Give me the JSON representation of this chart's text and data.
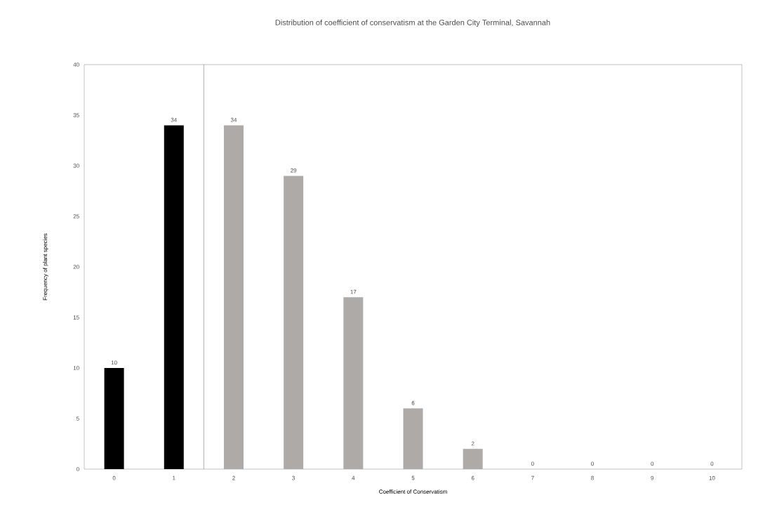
{
  "chart_data": {
    "type": "bar",
    "title": "Distribution of coefficient of conservatism at the Garden City Terminal, Savannah",
    "xlabel": "Coefficient of Conservatism",
    "ylabel": "Frequency of plant species",
    "categories": [
      "0",
      "1",
      "2",
      "3",
      "4",
      "5",
      "6",
      "7",
      "8",
      "9",
      "10"
    ],
    "values": [
      10,
      34,
      34,
      29,
      17,
      6,
      2,
      0,
      0,
      0,
      0
    ],
    "colors": [
      "#000000",
      "#000000",
      "#adaaa8",
      "#adaaa8",
      "#adaaa8",
      "#adaaa8",
      "#adaaa8",
      "#adaaa8",
      "#adaaa8",
      "#adaaa8",
      "#adaaa8"
    ],
    "ylim": [
      0,
      40
    ],
    "yticks": [
      0,
      5,
      10,
      15,
      20,
      25,
      30,
      35,
      40
    ],
    "data_labels": true,
    "grid": false
  }
}
